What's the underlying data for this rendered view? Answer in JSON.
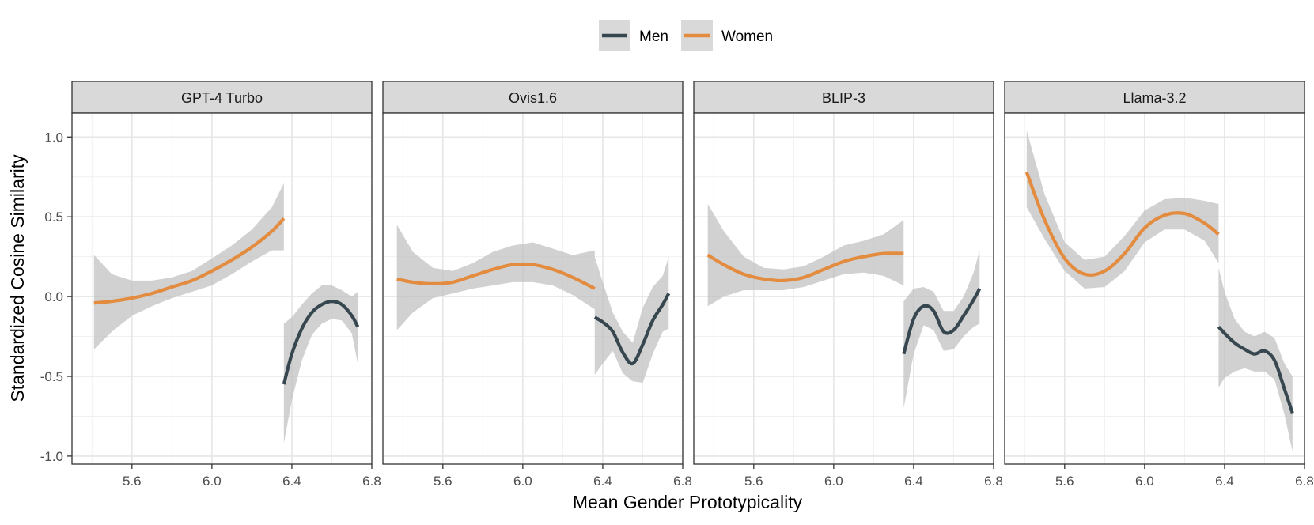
{
  "chart_data": {
    "type": "line",
    "facet_by": "model",
    "xlabel": "Mean Gender Prototypicality",
    "ylabel": "Standardized Cosine Similarity",
    "xlim": [
      5.3,
      6.8
    ],
    "ylim": [
      -1.05,
      1.15
    ],
    "x_ticks": [
      5.6,
      6.0,
      6.4,
      6.8
    ],
    "x_tick_labels": [
      "5.6",
      "6.0",
      "6.4",
      "6.8"
    ],
    "y_ticks": [
      1.0,
      0.5,
      0.0,
      -0.5,
      -1.0
    ],
    "y_tick_labels": [
      "1.0",
      "0.5",
      "0.0",
      "-0.5",
      "-1.0"
    ],
    "legend": {
      "position": "top",
      "entries": [
        {
          "name": "Men",
          "color": "#37474f"
        },
        {
          "name": "Women",
          "color": "#e38b3f"
        }
      ]
    },
    "ribbon_color": "#bdbdbd",
    "panels": [
      {
        "title": "GPT-4 Turbo",
        "series": [
          {
            "name": "Women",
            "x": [
              5.41,
              5.5,
              5.6,
              5.7,
              5.8,
              5.9,
              6.0,
              6.1,
              6.2,
              6.3,
              6.36
            ],
            "y": [
              -0.04,
              -0.03,
              -0.01,
              0.02,
              0.06,
              0.1,
              0.16,
              0.23,
              0.31,
              0.41,
              0.49
            ],
            "lower": [
              -0.33,
              -0.22,
              -0.12,
              -0.06,
              -0.01,
              0.03,
              0.07,
              0.14,
              0.22,
              0.29,
              0.29
            ],
            "upper": [
              0.26,
              0.14,
              0.1,
              0.1,
              0.12,
              0.16,
              0.24,
              0.32,
              0.42,
              0.56,
              0.71
            ]
          },
          {
            "name": "Men",
            "x": [
              6.36,
              6.4,
              6.45,
              6.5,
              6.55,
              6.6,
              6.65,
              6.7,
              6.73
            ],
            "y": [
              -0.55,
              -0.36,
              -0.2,
              -0.1,
              -0.05,
              -0.03,
              -0.05,
              -0.12,
              -0.19
            ],
            "lower": [
              -0.92,
              -0.65,
              -0.4,
              -0.24,
              -0.17,
              -0.14,
              -0.15,
              -0.23,
              -0.42
            ],
            "upper": [
              -0.17,
              -0.13,
              -0.05,
              0.02,
              0.07,
              0.07,
              0.04,
              0.0,
              0.03
            ]
          }
        ]
      },
      {
        "title": "Ovis1.6",
        "series": [
          {
            "name": "Women",
            "x": [
              5.37,
              5.45,
              5.55,
              5.65,
              5.75,
              5.85,
              5.95,
              6.05,
              6.15,
              6.25,
              6.36
            ],
            "y": [
              0.11,
              0.09,
              0.08,
              0.09,
              0.13,
              0.17,
              0.2,
              0.2,
              0.17,
              0.12,
              0.05
            ],
            "lower": [
              -0.21,
              -0.1,
              -0.01,
              0.02,
              0.05,
              0.07,
              0.09,
              0.09,
              0.07,
              0.01,
              -0.08
            ],
            "upper": [
              0.45,
              0.28,
              0.18,
              0.16,
              0.21,
              0.28,
              0.32,
              0.34,
              0.3,
              0.26,
              0.29
            ]
          },
          {
            "name": "Men",
            "x": [
              6.36,
              6.4,
              6.45,
              6.5,
              6.55,
              6.6,
              6.65,
              6.7,
              6.73
            ],
            "y": [
              -0.13,
              -0.16,
              -0.22,
              -0.35,
              -0.42,
              -0.3,
              -0.15,
              -0.05,
              0.02
            ],
            "lower": [
              -0.49,
              -0.42,
              -0.34,
              -0.48,
              -0.53,
              -0.54,
              -0.36,
              -0.22,
              -0.2
            ],
            "upper": [
              0.25,
              0.09,
              -0.1,
              -0.22,
              -0.29,
              -0.07,
              0.06,
              0.13,
              0.25
            ]
          }
        ]
      },
      {
        "title": "BLIP-3",
        "series": [
          {
            "name": "Women",
            "x": [
              5.37,
              5.45,
              5.55,
              5.65,
              5.75,
              5.85,
              5.95,
              6.05,
              6.15,
              6.25,
              6.35
            ],
            "y": [
              0.26,
              0.2,
              0.14,
              0.11,
              0.1,
              0.12,
              0.17,
              0.22,
              0.25,
              0.27,
              0.27
            ],
            "lower": [
              -0.06,
              0.0,
              0.04,
              0.04,
              0.04,
              0.06,
              0.1,
              0.14,
              0.15,
              0.13,
              0.07
            ],
            "upper": [
              0.58,
              0.41,
              0.25,
              0.18,
              0.17,
              0.19,
              0.25,
              0.32,
              0.35,
              0.39,
              0.48
            ]
          },
          {
            "name": "Men",
            "x": [
              6.35,
              6.4,
              6.45,
              6.5,
              6.55,
              6.6,
              6.65,
              6.7,
              6.73
            ],
            "y": [
              -0.36,
              -0.14,
              -0.06,
              -0.09,
              -0.22,
              -0.21,
              -0.12,
              -0.02,
              0.05
            ],
            "lower": [
              -0.7,
              -0.36,
              -0.18,
              -0.21,
              -0.34,
              -0.33,
              -0.25,
              -0.19,
              -0.17
            ],
            "upper": [
              -0.03,
              0.05,
              0.06,
              0.03,
              -0.09,
              -0.09,
              0.0,
              0.15,
              0.29
            ]
          }
        ]
      },
      {
        "title": "Llama-3.2",
        "series": [
          {
            "name": "Women",
            "x": [
              5.41,
              5.5,
              5.6,
              5.7,
              5.8,
              5.9,
              6.0,
              6.1,
              6.2,
              6.3,
              6.37
            ],
            "y": [
              0.78,
              0.48,
              0.24,
              0.14,
              0.16,
              0.27,
              0.43,
              0.51,
              0.52,
              0.46,
              0.39
            ],
            "lower": [
              0.56,
              0.36,
              0.16,
              0.05,
              0.06,
              0.16,
              0.34,
              0.42,
              0.42,
              0.35,
              0.21
            ],
            "upper": [
              1.04,
              0.64,
              0.34,
              0.23,
              0.25,
              0.38,
              0.54,
              0.61,
              0.62,
              0.6,
              0.58
            ]
          },
          {
            "name": "Men",
            "x": [
              6.37,
              6.4,
              6.45,
              6.5,
              6.55,
              6.6,
              6.65,
              6.7,
              6.74
            ],
            "y": [
              -0.19,
              -0.23,
              -0.29,
              -0.33,
              -0.36,
              -0.34,
              -0.4,
              -0.58,
              -0.73
            ],
            "lower": [
              -0.57,
              -0.51,
              -0.47,
              -0.45,
              -0.47,
              -0.47,
              -0.52,
              -0.74,
              -0.97
            ],
            "upper": [
              0.18,
              0.03,
              -0.14,
              -0.22,
              -0.25,
              -0.22,
              -0.26,
              -0.42,
              -0.5
            ]
          }
        ]
      }
    ]
  }
}
